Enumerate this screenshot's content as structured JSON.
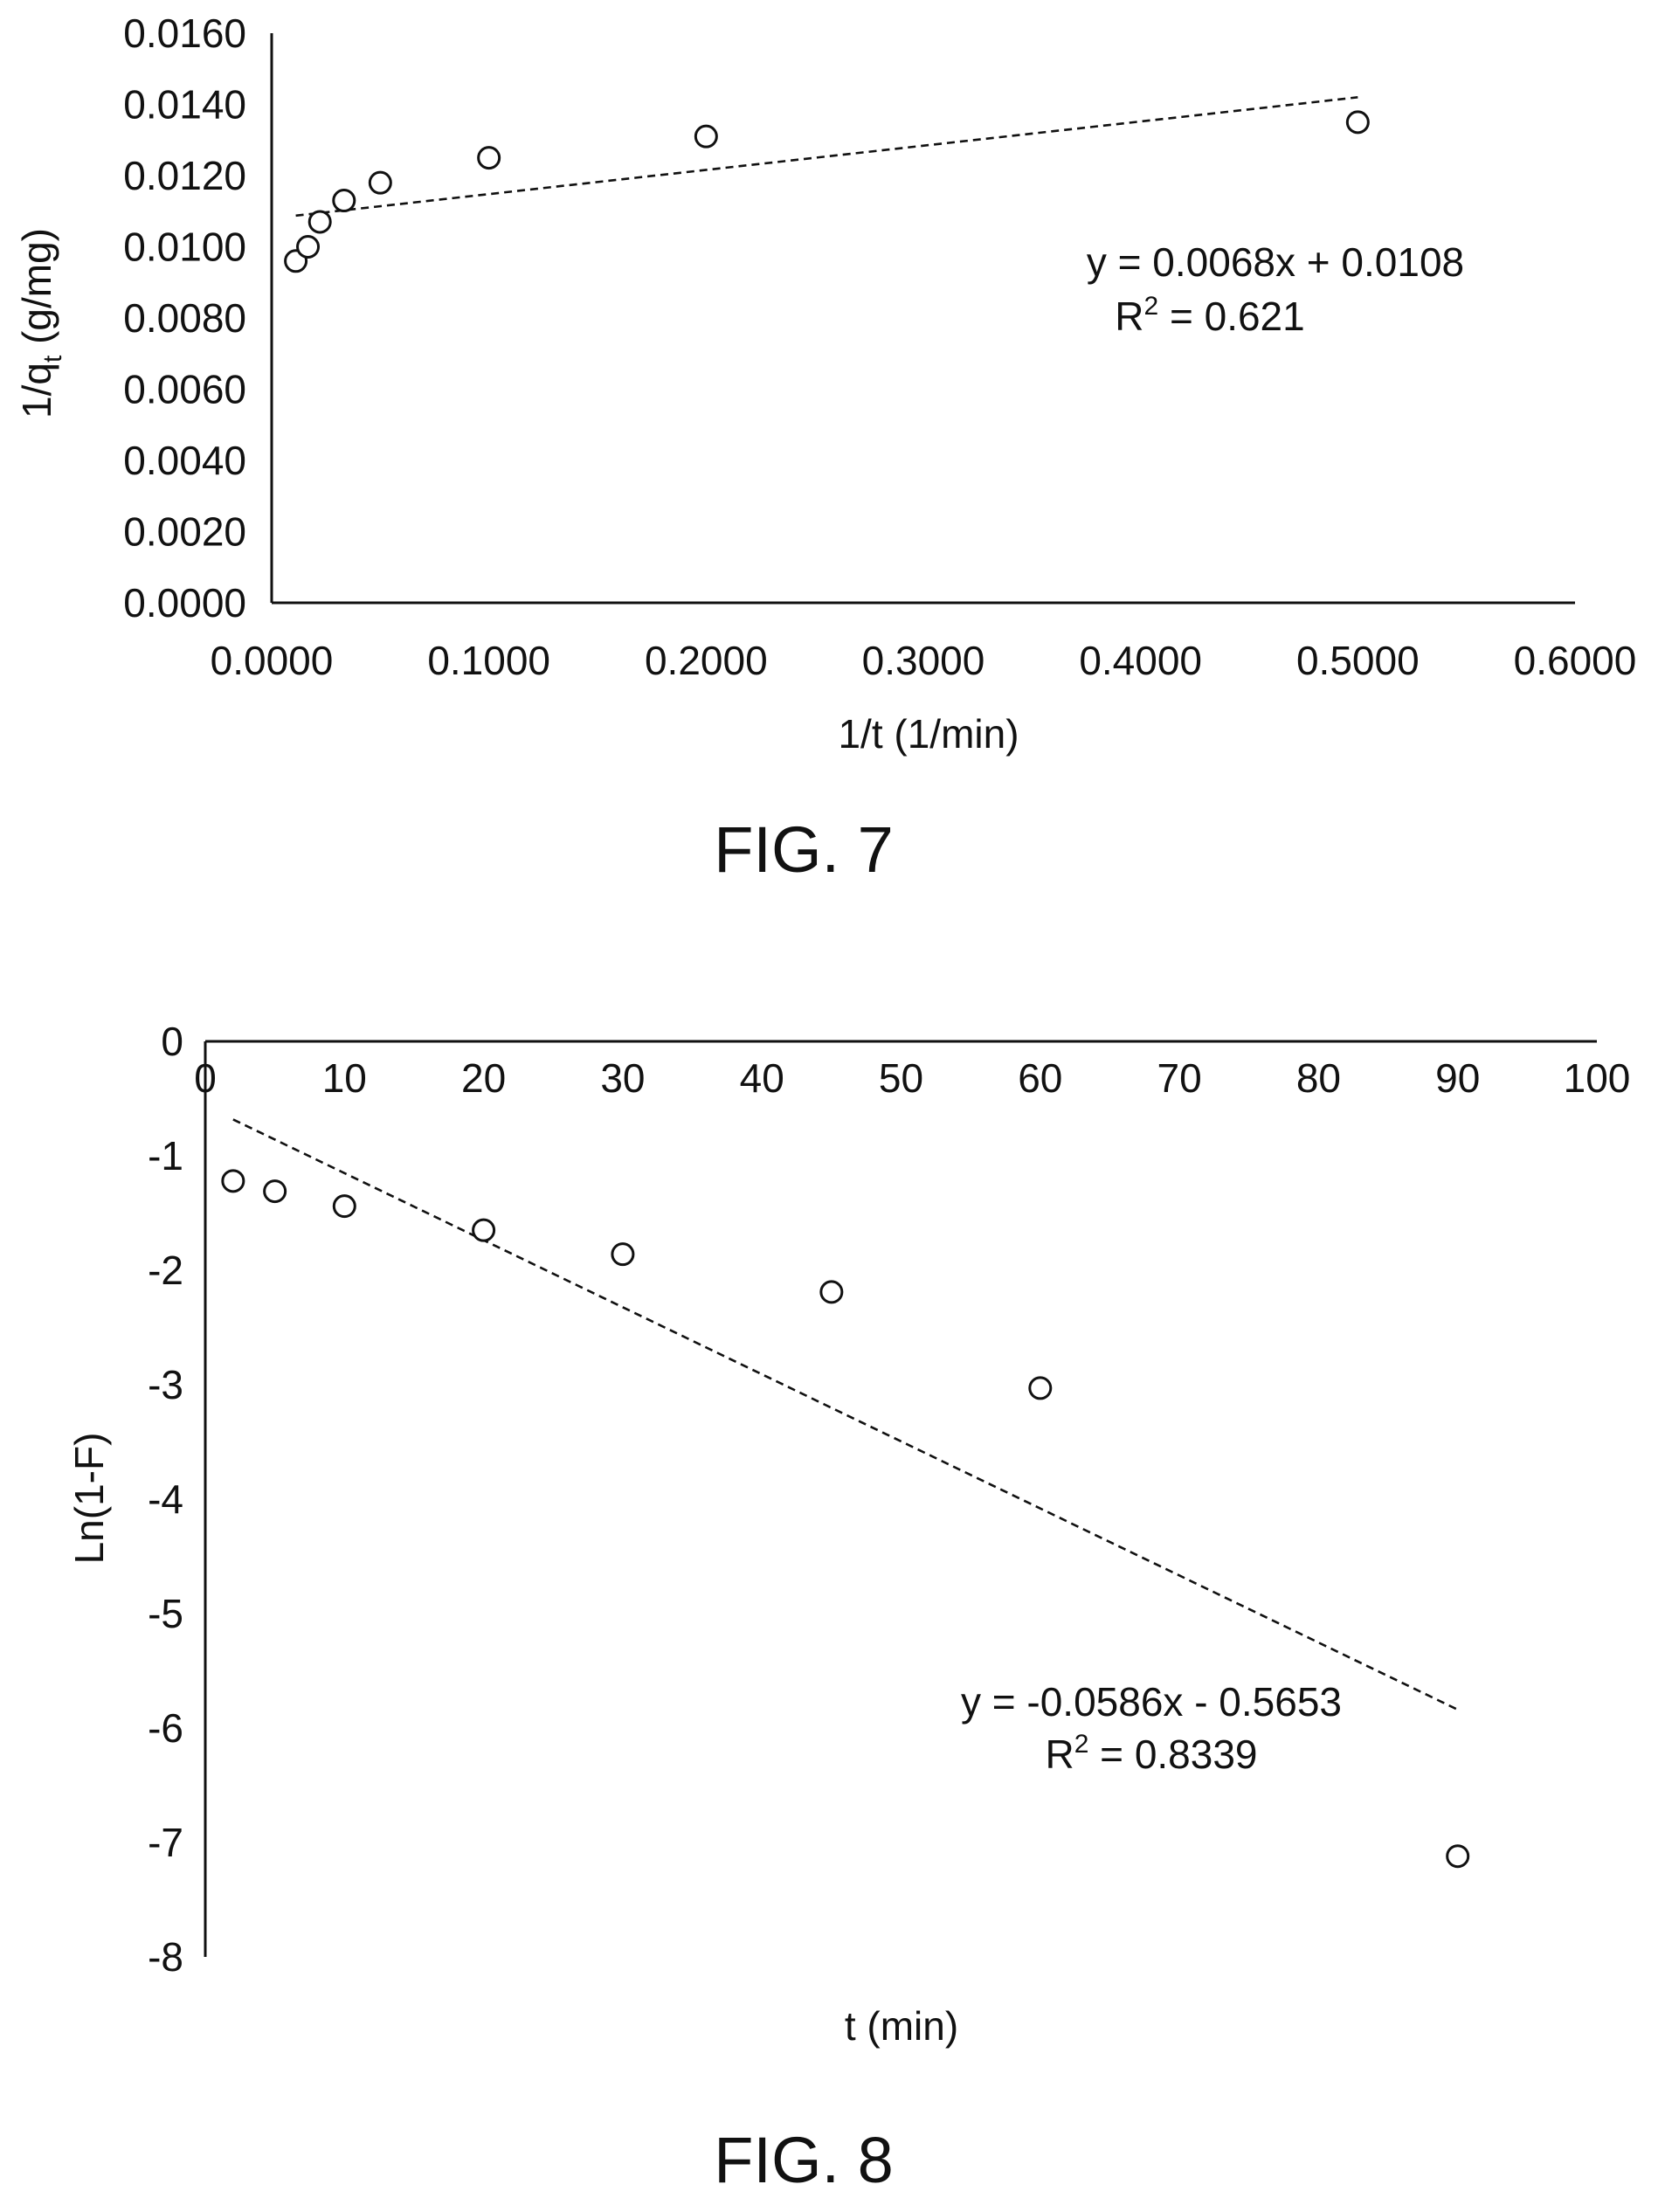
{
  "chart_data": [
    {
      "type": "scatter",
      "caption": "FIG. 7",
      "xlabel": "1/t (1/min)",
      "ylabel": "1/q",
      "ylabel_sub": "t",
      "ylabel_suffix": " (g/mg)",
      "xlim": [
        0,
        0.6
      ],
      "ylim": [
        0,
        0.016
      ],
      "x_ticks": [
        "0.0000",
        "0.1000",
        "0.2000",
        "0.3000",
        "0.4000",
        "0.5000",
        "0.6000"
      ],
      "y_ticks": [
        "0.0000",
        "0.0020",
        "0.0040",
        "0.0060",
        "0.0080",
        "0.0100",
        "0.0120",
        "0.0140",
        "0.0160"
      ],
      "grid": false,
      "series": [
        {
          "x": [
            0.0111,
            0.0167,
            0.0222,
            0.0333,
            0.05,
            0.1,
            0.2,
            0.5
          ],
          "y": [
            0.0096,
            0.01,
            0.0107,
            0.0113,
            0.0118,
            0.0125,
            0.0131,
            0.0135
          ]
        }
      ],
      "trendline": {
        "slope": 0.0068,
        "intercept": 0.0108,
        "x_range": [
          0.0111,
          0.5
        ],
        "equation": "y = 0.0068x + 0.0108",
        "r2_prefix": "R",
        "r2_sup": "2",
        "r2_value": " = 0.621"
      }
    },
    {
      "type": "scatter",
      "caption": "FIG. 8",
      "xlabel": "t (min)",
      "ylabel": "Ln(1-F)",
      "xlim": [
        0,
        100
      ],
      "ylim": [
        -8,
        0
      ],
      "x_ticks": [
        "0",
        "10",
        "20",
        "30",
        "40",
        "50",
        "60",
        "70",
        "80",
        "90",
        "100"
      ],
      "y_ticks": [
        "0",
        "-1",
        "-2",
        "-3",
        "-4",
        "-5",
        "-6",
        "-7",
        "-8"
      ],
      "grid": false,
      "series": [
        {
          "x": [
            2,
            5,
            10,
            20,
            30,
            45,
            60,
            90
          ],
          "y": [
            -1.22,
            -1.31,
            -1.44,
            -1.65,
            -1.86,
            -2.19,
            -3.03,
            -7.12
          ]
        }
      ],
      "trendline": {
        "slope": -0.0586,
        "intercept": -0.5653,
        "x_range": [
          2,
          90
        ],
        "equation": "y = -0.0586x - 0.5653",
        "r2_prefix": "R",
        "r2_sup": "2",
        "r2_value": " = 0.8339"
      }
    }
  ]
}
